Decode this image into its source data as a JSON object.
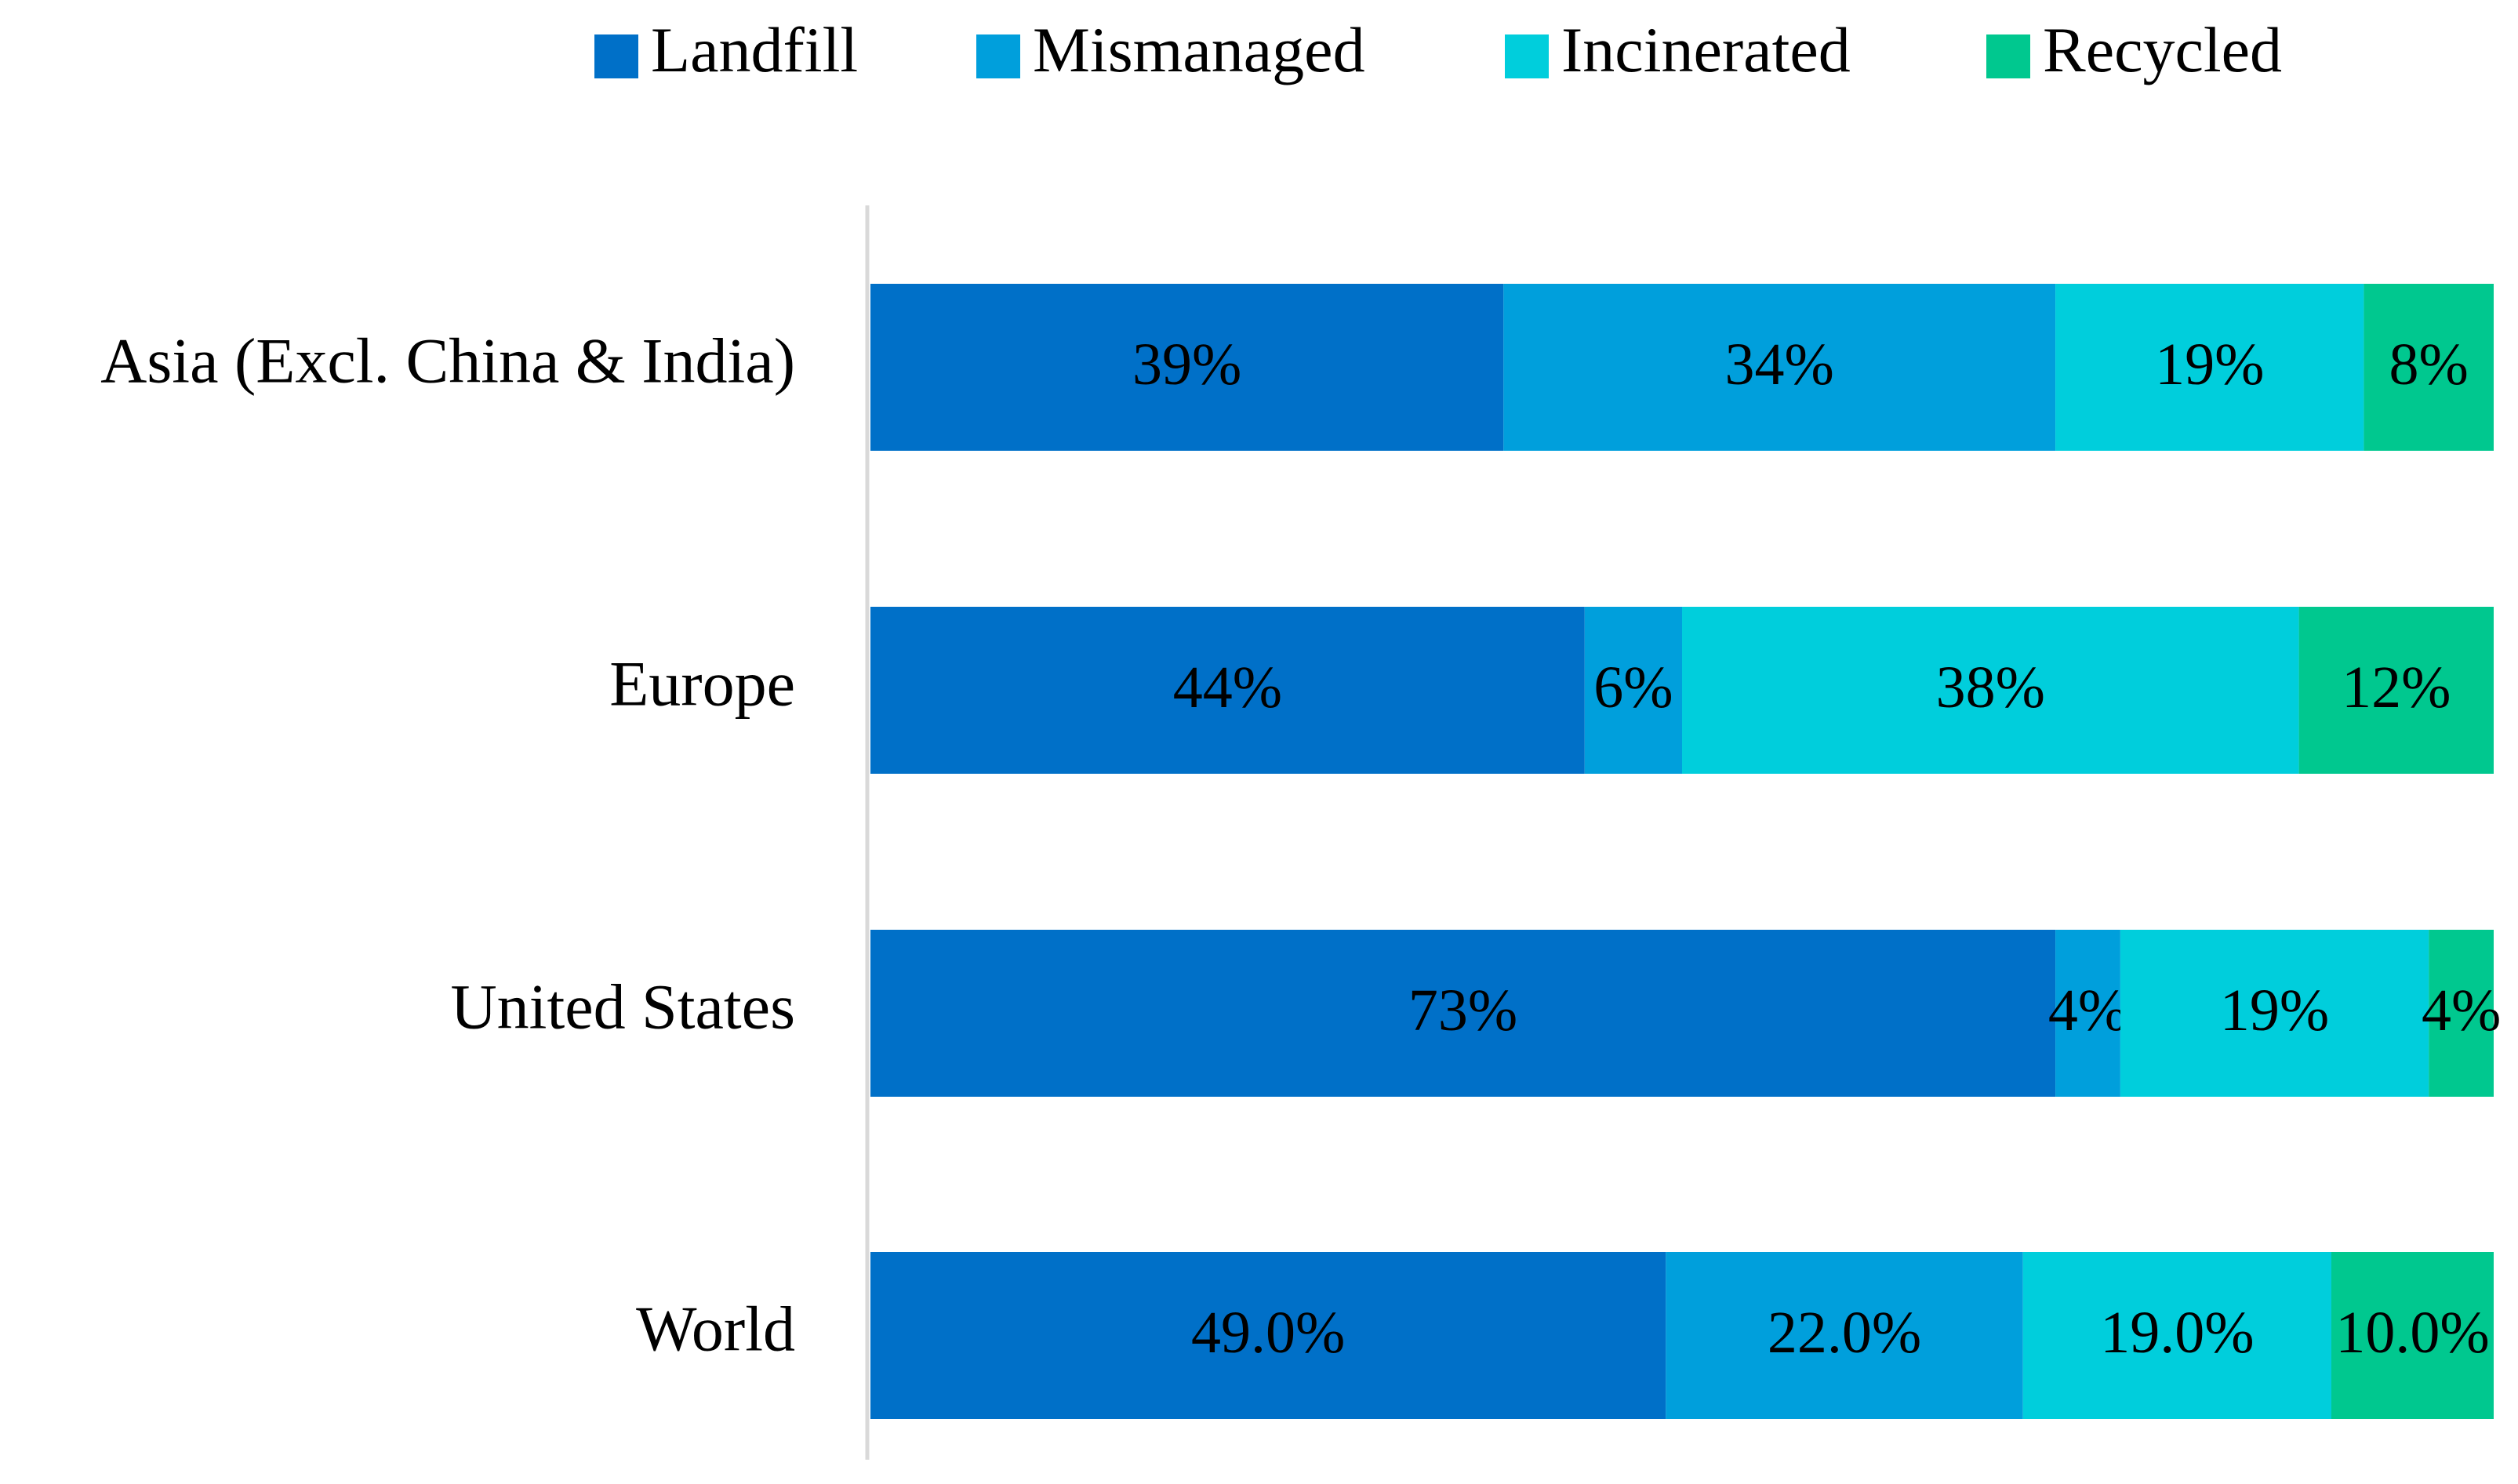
{
  "chart_data": {
    "type": "stacked-bar-horizontal",
    "categories": [
      "Asia (Excl. China & India)",
      "Europe",
      "United States",
      "World"
    ],
    "xlim": [
      0,
      100
    ],
    "series": [
      {
        "name": "Landfill",
        "color": "#0070c8",
        "values": [
          39,
          44,
          73,
          49
        ],
        "value_labels": [
          "39%",
          "44%",
          "73%",
          "49.0%"
        ]
      },
      {
        "name": "Mismanaged",
        "color": "#009fdc",
        "values": [
          34,
          6,
          4,
          22
        ],
        "value_labels": [
          "34%",
          "6%",
          "4%",
          "22.0%"
        ]
      },
      {
        "name": "Incinerated",
        "color": "#00cedc",
        "values": [
          19,
          38,
          19,
          19
        ],
        "value_labels": [
          "19%",
          "38%",
          "19%",
          "19.0%"
        ]
      },
      {
        "name": "Recycled",
        "color": "#00c88f",
        "values": [
          8,
          12,
          4,
          10
        ],
        "value_labels": [
          "8%",
          "12%",
          "4%",
          "10.0%"
        ]
      }
    ]
  }
}
